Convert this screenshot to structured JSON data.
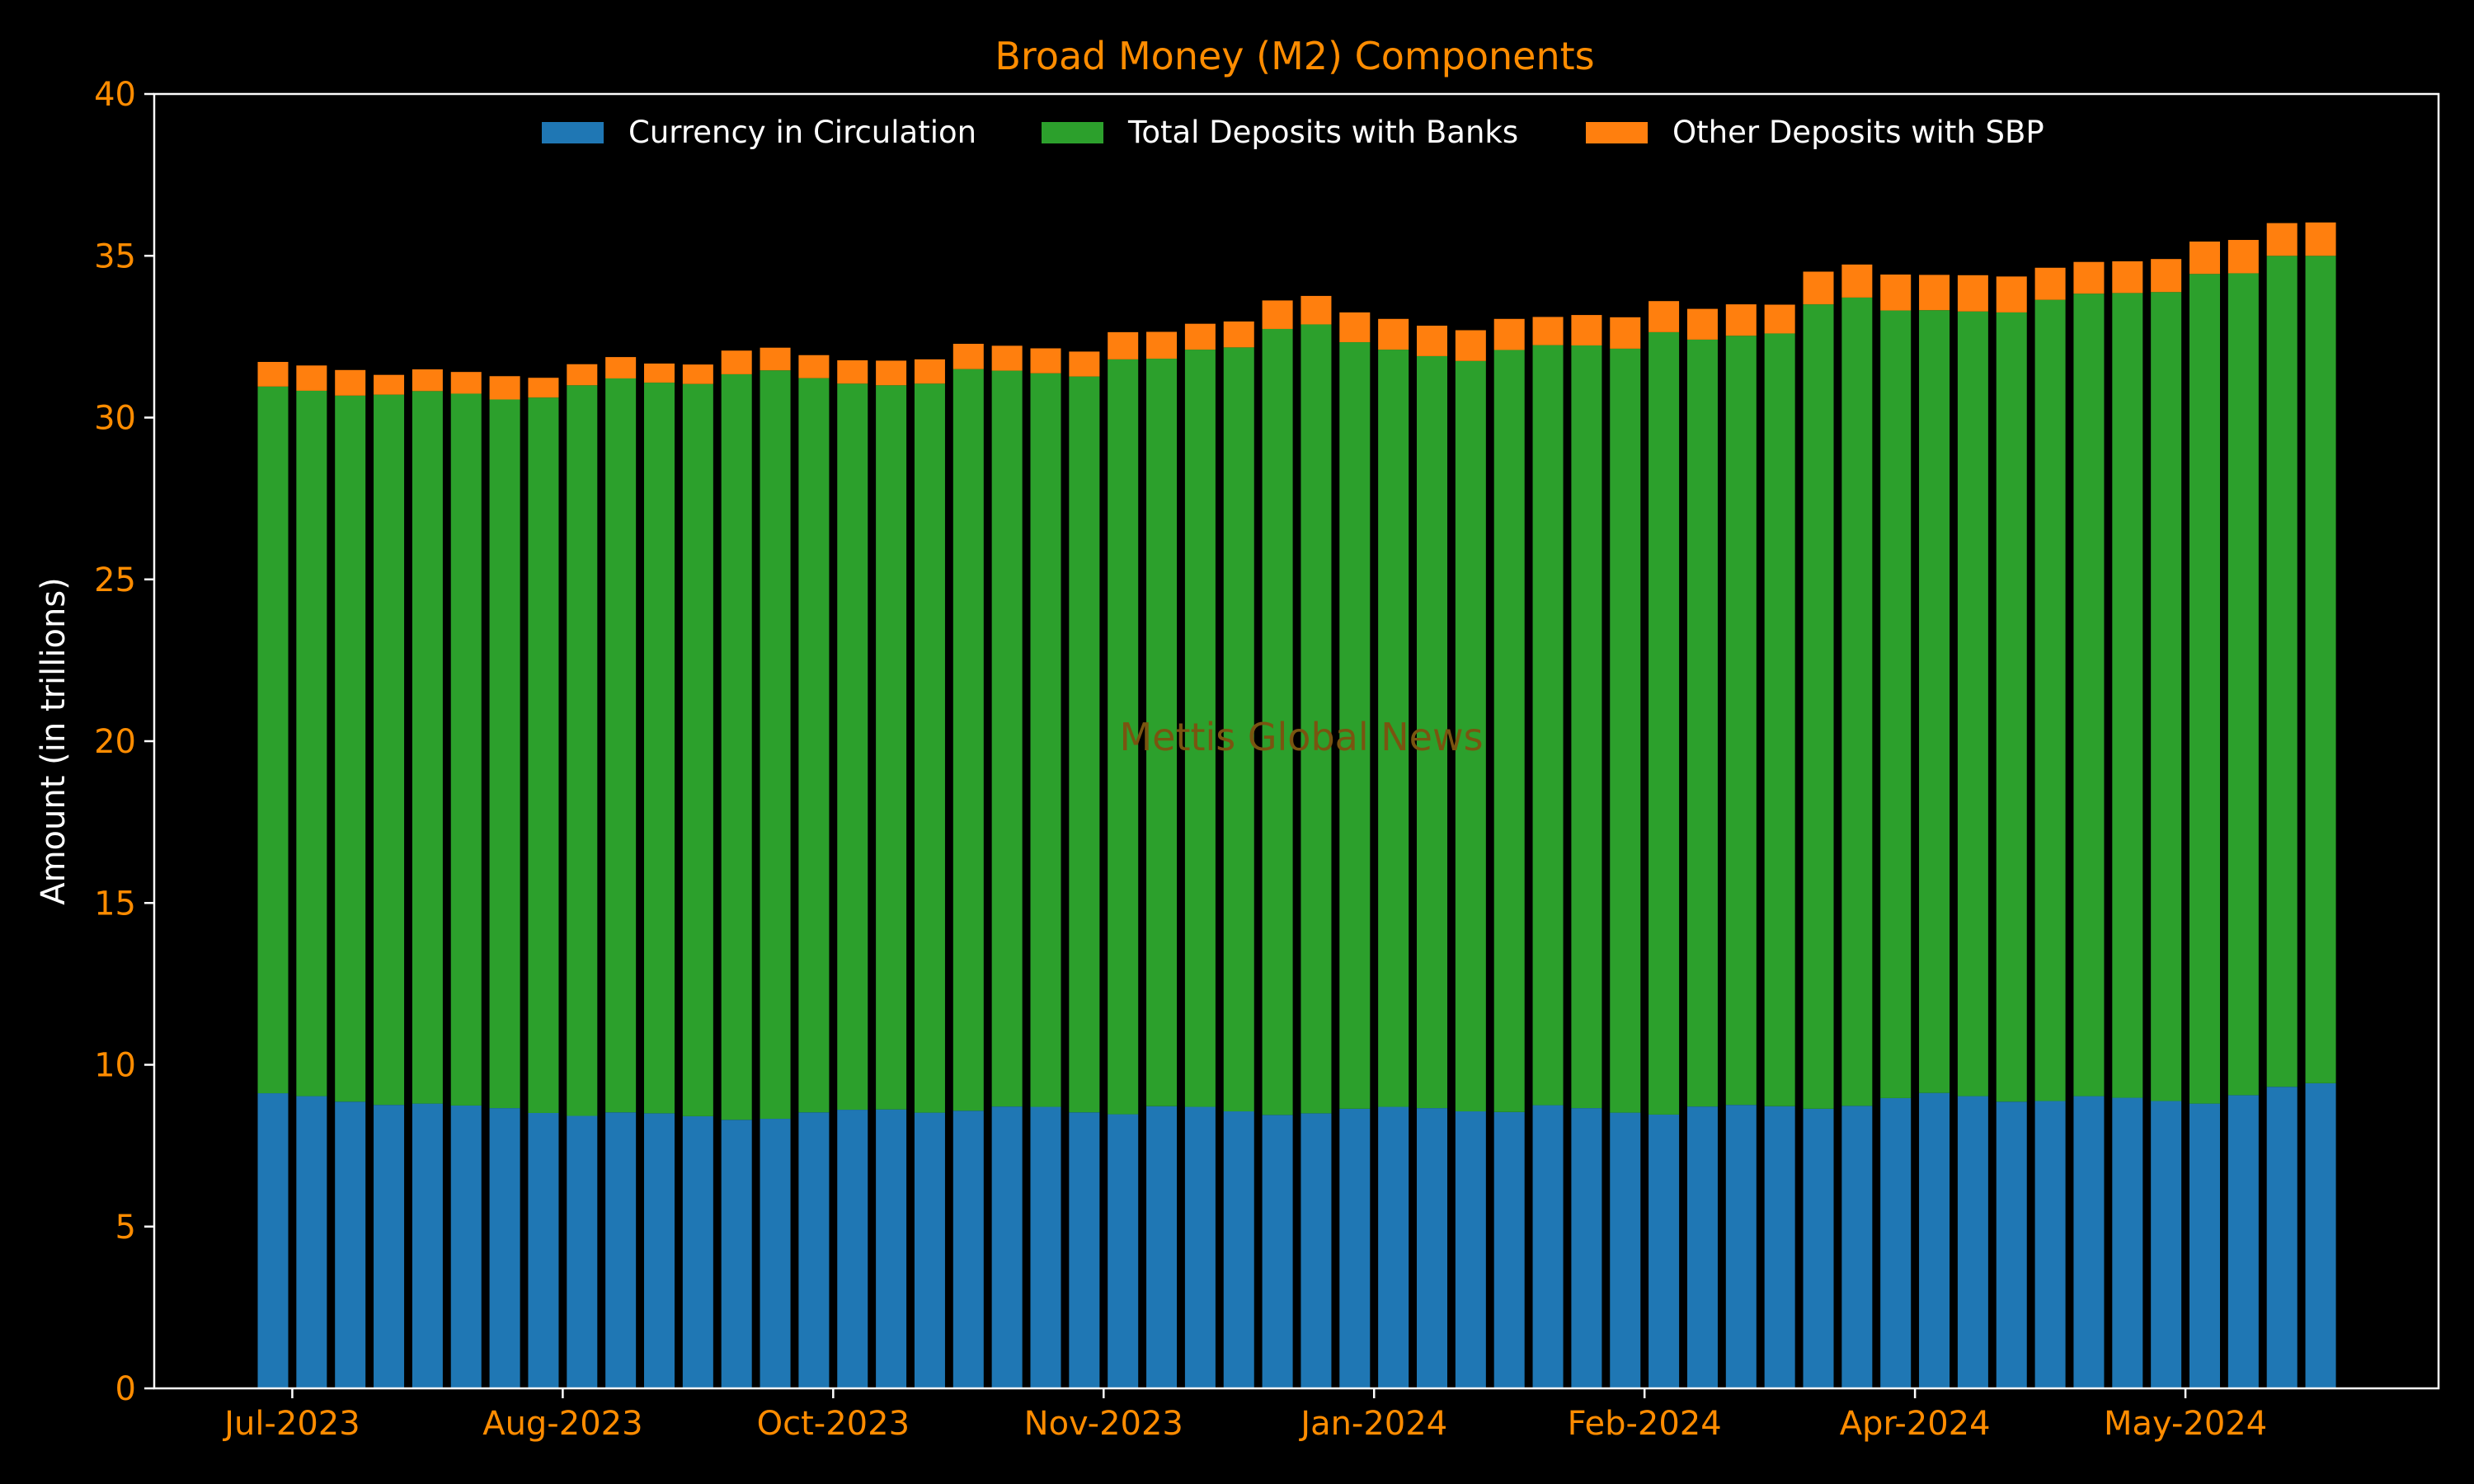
{
  "chart_data": {
    "type": "bar",
    "stacked": true,
    "title": "Broad Money (M2) Components",
    "ylabel": "Amount (in trillions)",
    "xlabel": "",
    "ylim": [
      0,
      40
    ],
    "yticks": [
      0,
      5,
      10,
      15,
      20,
      25,
      30,
      35,
      40
    ],
    "xtick_labels": [
      {
        "label": "Jul-2023",
        "index": 0.5
      },
      {
        "label": "Aug-2023",
        "index": 7.5
      },
      {
        "label": "Oct-2023",
        "index": 14.5
      },
      {
        "label": "Nov-2023",
        "index": 21.5
      },
      {
        "label": "Jan-2024",
        "index": 28.5
      },
      {
        "label": "Feb-2024",
        "index": 35.5
      },
      {
        "label": "Apr-2024",
        "index": 42.5
      },
      {
        "label": "May-2024",
        "index": 49.5
      }
    ],
    "legend_position": "top-center",
    "grid": false,
    "watermark": "Mettis Global News",
    "colors": {
      "background": "#000000",
      "axes_frame": "#ffffff",
      "tick_labels": "#ff8c00",
      "title": "#ff8c00",
      "ylabel": "#ffffff",
      "legend_text": "#ffffff",
      "watermark": "#7a5410"
    },
    "series": [
      {
        "name": "Currency in Circulation",
        "color": "#1f77b4",
        "values": [
          9.12,
          9.03,
          8.86,
          8.76,
          8.8,
          8.74,
          8.66,
          8.51,
          8.42,
          8.53,
          8.5,
          8.41,
          8.3,
          8.33,
          8.53,
          8.61,
          8.62,
          8.52,
          8.58,
          8.71,
          8.7,
          8.53,
          8.47,
          8.72,
          8.7,
          8.56,
          8.45,
          8.5,
          8.64,
          8.7,
          8.66,
          8.56,
          8.54,
          8.75,
          8.66,
          8.52,
          8.46,
          8.71,
          8.76,
          8.72,
          8.64,
          8.73,
          8.97,
          9.13,
          9.03,
          8.86,
          8.88,
          9.03,
          8.98,
          8.88,
          8.8,
          9.06,
          9.32,
          9.43
        ]
      },
      {
        "name": "Total Deposits with Banks",
        "color": "#2ca02c",
        "values": [
          21.84,
          21.8,
          21.82,
          21.95,
          22.02,
          22.0,
          21.9,
          22.11,
          22.58,
          22.68,
          22.58,
          22.63,
          23.04,
          23.13,
          22.69,
          22.44,
          22.38,
          22.53,
          22.92,
          22.74,
          22.67,
          22.74,
          23.33,
          23.1,
          23.4,
          23.61,
          24.29,
          24.38,
          23.69,
          23.4,
          23.24,
          23.19,
          23.55,
          23.49,
          23.57,
          23.61,
          24.18,
          23.7,
          23.77,
          23.88,
          24.86,
          24.98,
          24.34,
          24.19,
          24.25,
          24.39,
          24.76,
          24.8,
          24.87,
          25.0,
          25.64,
          25.4,
          25.68,
          25.57
        ]
      },
      {
        "name": "Other Deposits with SBP",
        "color": "#ff7f0e",
        "values": [
          0.76,
          0.78,
          0.79,
          0.61,
          0.67,
          0.67,
          0.72,
          0.61,
          0.65,
          0.66,
          0.59,
          0.6,
          0.73,
          0.7,
          0.71,
          0.72,
          0.76,
          0.75,
          0.78,
          0.77,
          0.77,
          0.77,
          0.84,
          0.83,
          0.8,
          0.8,
          0.88,
          0.88,
          0.92,
          0.95,
          0.94,
          0.95,
          0.96,
          0.87,
          0.94,
          0.97,
          0.96,
          0.95,
          0.97,
          0.89,
          1.01,
          1.02,
          1.11,
          1.09,
          1.12,
          1.11,
          0.99,
          0.98,
          0.98,
          1.02,
          1.0,
          1.03,
          1.01,
          1.03
        ]
      }
    ]
  }
}
